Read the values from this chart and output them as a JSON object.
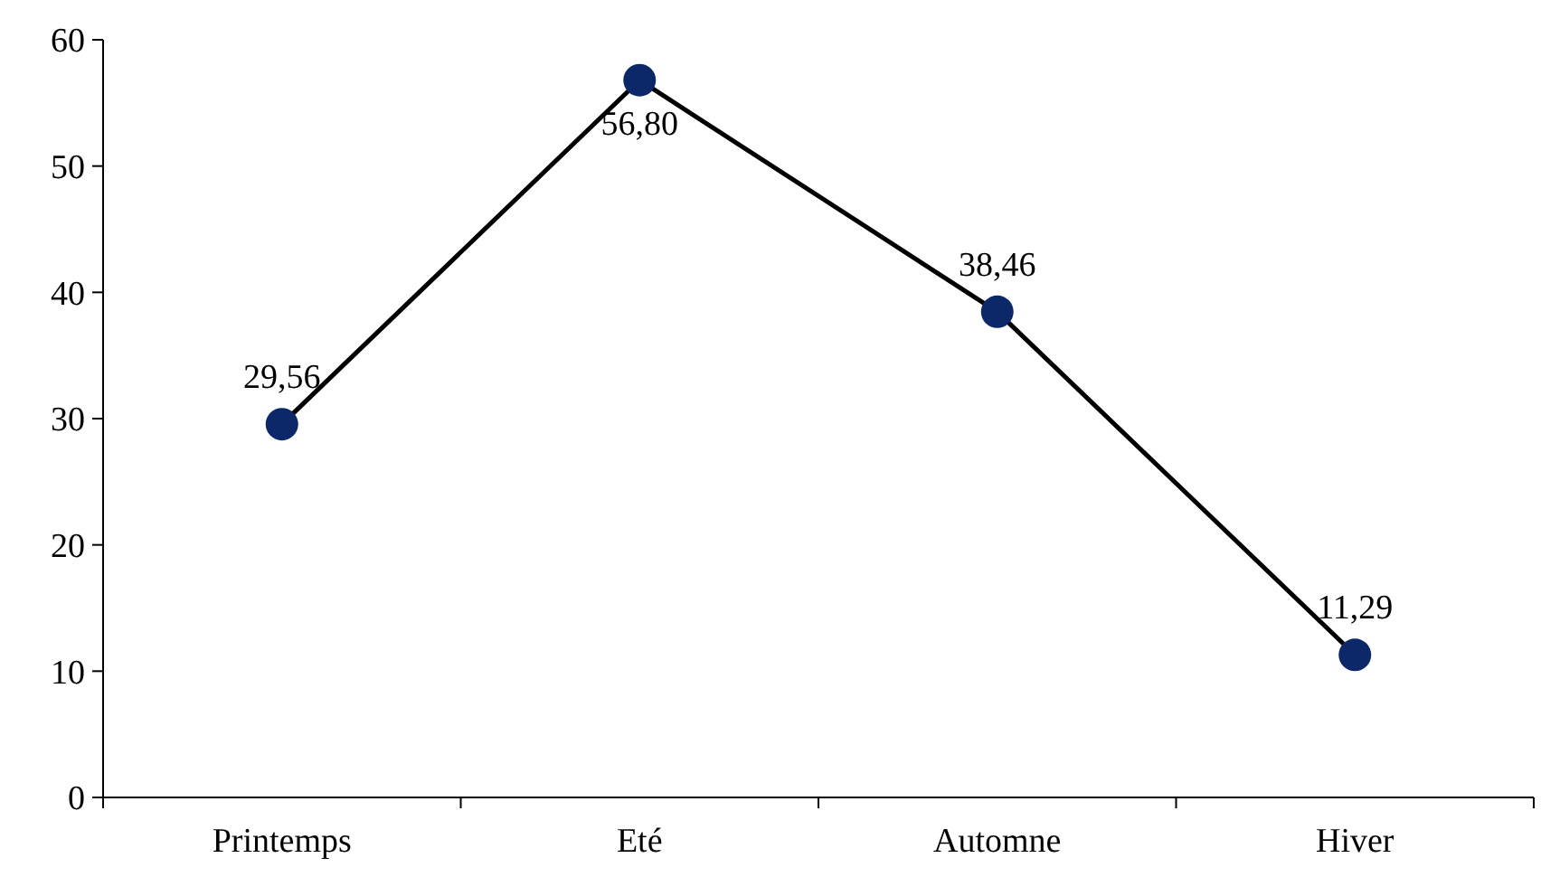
{
  "chart_data": {
    "type": "line",
    "categories": [
      "Printemps",
      "Eté",
      "Automne",
      "Hiver"
    ],
    "series": [
      {
        "color": "#000000",
        "colors": [
          "#0c2869",
          "#0c2869",
          "#0c2869",
          "#0c2869"
        ],
        "values": [
          29.56,
          56.8,
          38.46,
          11.29
        ],
        "value_labels": [
          "29,56",
          "56,80",
          "38,46",
          "11,29"
        ]
      }
    ],
    "ylim": [
      0,
      60
    ],
    "yticks": [
      0,
      10,
      20,
      30,
      40,
      50,
      60
    ],
    "marker": "circle",
    "line_style": "solid"
  }
}
